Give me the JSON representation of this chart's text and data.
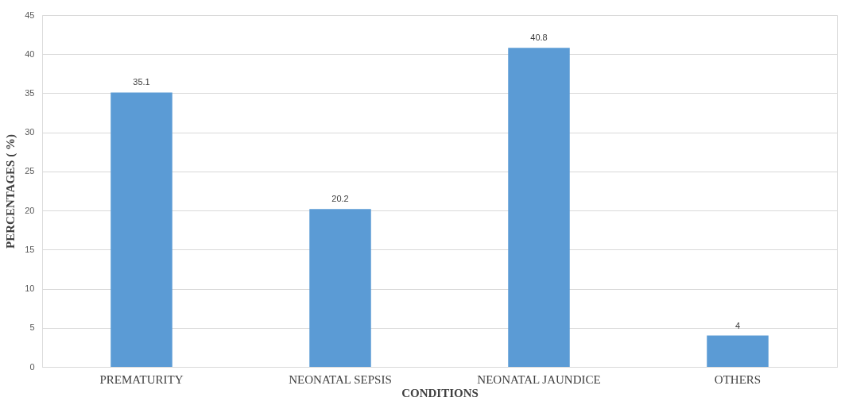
{
  "chart_data": {
    "type": "bar",
    "xlabel": "CONDITIONS",
    "ylabel": "PERCENTAGES ( %)",
    "categories": [
      "PREMATURITY",
      "NEONATAL SEPSIS",
      "NEONATAL JAUNDICE",
      "OTHERS"
    ],
    "values": [
      35.1,
      20.2,
      40.8,
      4
    ],
    "color": "#5b9bd5",
    "ylim": [
      0,
      45
    ],
    "yticks": [
      0,
      5,
      10,
      15,
      20,
      25,
      30,
      35,
      40,
      45
    ],
    "grid": "y",
    "data_labels": true
  }
}
